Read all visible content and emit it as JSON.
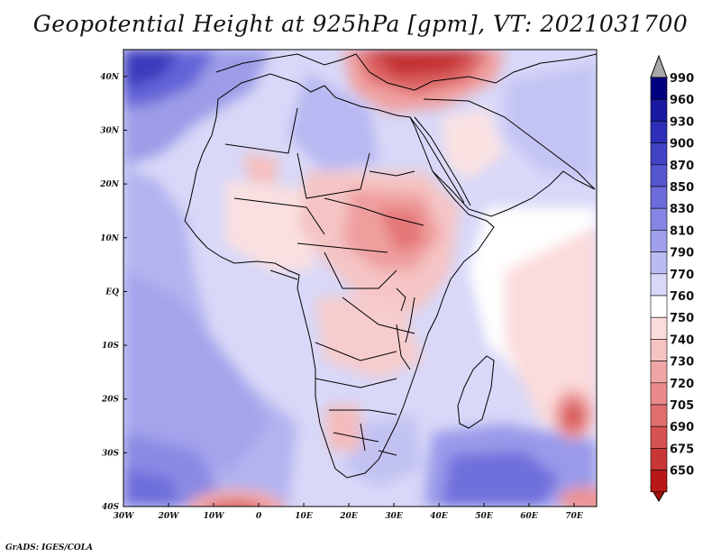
{
  "title": "Geopotential Height at 925hPa [gpm], VT: 2021031700",
  "credit": "GrADS: IGES/COLA",
  "map": {
    "variable": "Geopotential Height",
    "level": "925hPa",
    "units": "gpm",
    "valid_time": "2021031700",
    "lon_range": [
      -30,
      75
    ],
    "lat_range": [
      -40,
      45
    ],
    "lon_ticks": [
      {
        "value": -30,
        "label": "30W"
      },
      {
        "value": -20,
        "label": "20W"
      },
      {
        "value": -10,
        "label": "10W"
      },
      {
        "value": 0,
        "label": "0"
      },
      {
        "value": 10,
        "label": "10E"
      },
      {
        "value": 20,
        "label": "20E"
      },
      {
        "value": 30,
        "label": "30E"
      },
      {
        "value": 40,
        "label": "40E"
      },
      {
        "value": 50,
        "label": "50E"
      },
      {
        "value": 60,
        "label": "60E"
      },
      {
        "value": 70,
        "label": "70E"
      }
    ],
    "lat_ticks": [
      {
        "value": 40,
        "label": "40N"
      },
      {
        "value": 30,
        "label": "30N"
      },
      {
        "value": 20,
        "label": "20N"
      },
      {
        "value": 10,
        "label": "10N"
      },
      {
        "value": 0,
        "label": "EQ"
      },
      {
        "value": -10,
        "label": "10S"
      },
      {
        "value": -20,
        "label": "20S"
      },
      {
        "value": -30,
        "label": "30S"
      },
      {
        "value": -40,
        "label": "40S"
      }
    ]
  },
  "colorbar": {
    "levels": [
      {
        "label": "990",
        "color": "#00007f"
      },
      {
        "label": "960",
        "color": "#1a19a0"
      },
      {
        "label": "930",
        "color": "#2e2eb8"
      },
      {
        "label": "900",
        "color": "#4242c4"
      },
      {
        "label": "870",
        "color": "#5555d0"
      },
      {
        "label": "850",
        "color": "#6c6cdc"
      },
      {
        "label": "830",
        "color": "#8585e4"
      },
      {
        "label": "810",
        "color": "#a0a0ec"
      },
      {
        "label": "790",
        "color": "#bbbbf2"
      },
      {
        "label": "770",
        "color": "#d8d8f8"
      },
      {
        "label": "760",
        "color": "#ffffff"
      },
      {
        "label": "750",
        "color": "#fbdcdc"
      },
      {
        "label": "740",
        "color": "#f6c2c2"
      },
      {
        "label": "730",
        "color": "#f0a6a6"
      },
      {
        "label": "720",
        "color": "#ea8a8a"
      },
      {
        "label": "705",
        "color": "#e06e6e"
      },
      {
        "label": "690",
        "color": "#d65252"
      },
      {
        "label": "675",
        "color": "#c83636"
      },
      {
        "label": "650",
        "color": "#b81818"
      }
    ],
    "top_arrow_color": "#a8a8a8",
    "bottom_arrow_color": "#a01010"
  }
}
